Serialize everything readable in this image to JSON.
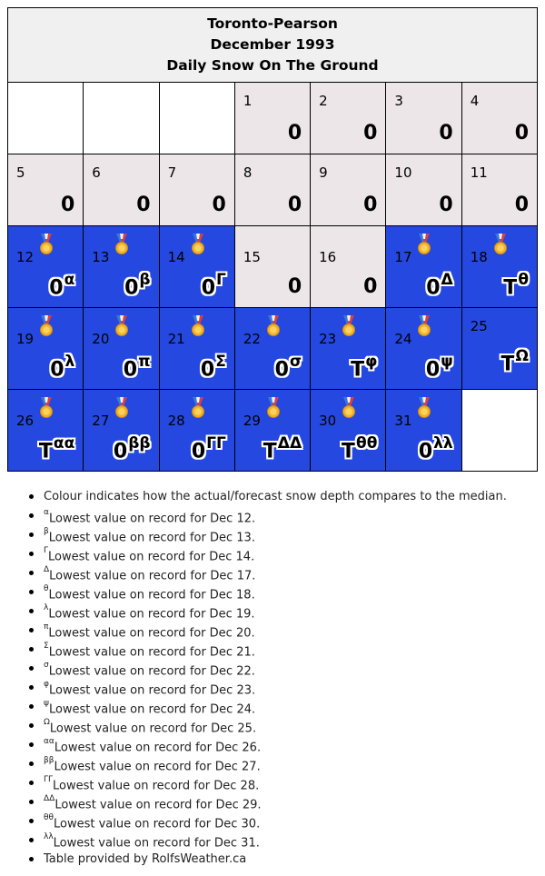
{
  "header": {
    "station": "Toronto-Pearson",
    "month": "December 1993",
    "metric": "Daily Snow On The Ground"
  },
  "colors": {
    "below_median": "#2448e0",
    "at_median": "#ece6e8"
  },
  "icons": {
    "record": "medal-icon"
  },
  "days": [
    {
      "day": "1",
      "value": "0",
      "mark": ""
    },
    {
      "day": "2",
      "value": "0",
      "mark": ""
    },
    {
      "day": "3",
      "value": "0",
      "mark": ""
    },
    {
      "day": "4",
      "value": "0",
      "mark": ""
    },
    {
      "day": "5",
      "value": "0",
      "mark": ""
    },
    {
      "day": "6",
      "value": "0",
      "mark": ""
    },
    {
      "day": "7",
      "value": "0",
      "mark": ""
    },
    {
      "day": "8",
      "value": "0",
      "mark": ""
    },
    {
      "day": "9",
      "value": "0",
      "mark": ""
    },
    {
      "day": "10",
      "value": "0",
      "mark": ""
    },
    {
      "day": "11",
      "value": "0",
      "mark": ""
    },
    {
      "day": "12",
      "value": "0",
      "mark": "α"
    },
    {
      "day": "13",
      "value": "0",
      "mark": "β"
    },
    {
      "day": "14",
      "value": "0",
      "mark": "Γ"
    },
    {
      "day": "15",
      "value": "0",
      "mark": ""
    },
    {
      "day": "16",
      "value": "0",
      "mark": ""
    },
    {
      "day": "17",
      "value": "0",
      "mark": "Δ"
    },
    {
      "day": "18",
      "value": "T",
      "mark": "θ"
    },
    {
      "day": "19",
      "value": "0",
      "mark": "λ"
    },
    {
      "day": "20",
      "value": "0",
      "mark": "π"
    },
    {
      "day": "21",
      "value": "0",
      "mark": "Σ"
    },
    {
      "day": "22",
      "value": "0",
      "mark": "σ"
    },
    {
      "day": "23",
      "value": "T",
      "mark": "φ"
    },
    {
      "day": "24",
      "value": "0",
      "mark": "ψ"
    },
    {
      "day": "25",
      "value": "T",
      "mark": "Ω"
    },
    {
      "day": "26",
      "value": "T",
      "mark": "αα"
    },
    {
      "day": "27",
      "value": "0",
      "mark": "ββ"
    },
    {
      "day": "28",
      "value": "0",
      "mark": "ΓΓ"
    },
    {
      "day": "29",
      "value": "T",
      "mark": "ΔΔ"
    },
    {
      "day": "30",
      "value": "T",
      "mark": "θθ"
    },
    {
      "day": "31",
      "value": "0",
      "mark": "λλ"
    }
  ],
  "notes": {
    "legend": "Colour indicates how the actual/forecast snow depth compares to the median.",
    "items": [
      {
        "mark": "α",
        "text": "Lowest value on record for Dec 12."
      },
      {
        "mark": "β",
        "text": "Lowest value on record for Dec 13."
      },
      {
        "mark": "Γ",
        "text": "Lowest value on record for Dec 14."
      },
      {
        "mark": "Δ",
        "text": "Lowest value on record for Dec 17."
      },
      {
        "mark": "θ",
        "text": "Lowest value on record for Dec 18."
      },
      {
        "mark": "λ",
        "text": "Lowest value on record for Dec 19."
      },
      {
        "mark": "π",
        "text": "Lowest value on record for Dec 20."
      },
      {
        "mark": "Σ",
        "text": "Lowest value on record for Dec 21."
      },
      {
        "mark": "σ",
        "text": "Lowest value on record for Dec 22."
      },
      {
        "mark": "φ",
        "text": "Lowest value on record for Dec 23."
      },
      {
        "mark": "ψ",
        "text": "Lowest value on record for Dec 24."
      },
      {
        "mark": "Ω",
        "text": "Lowest value on record for Dec 25."
      },
      {
        "mark": "αα",
        "text": "Lowest value on record for Dec 26."
      },
      {
        "mark": "ββ",
        "text": "Lowest value on record for Dec 27."
      },
      {
        "mark": "ΓΓ",
        "text": "Lowest value on record for Dec 28."
      },
      {
        "mark": "ΔΔ",
        "text": "Lowest value on record for Dec 29."
      },
      {
        "mark": "θθ",
        "text": "Lowest value on record for Dec 30."
      },
      {
        "mark": "λλ",
        "text": "Lowest value on record for Dec 31."
      }
    ],
    "credit": "Table provided by RolfsWeather.ca"
  }
}
